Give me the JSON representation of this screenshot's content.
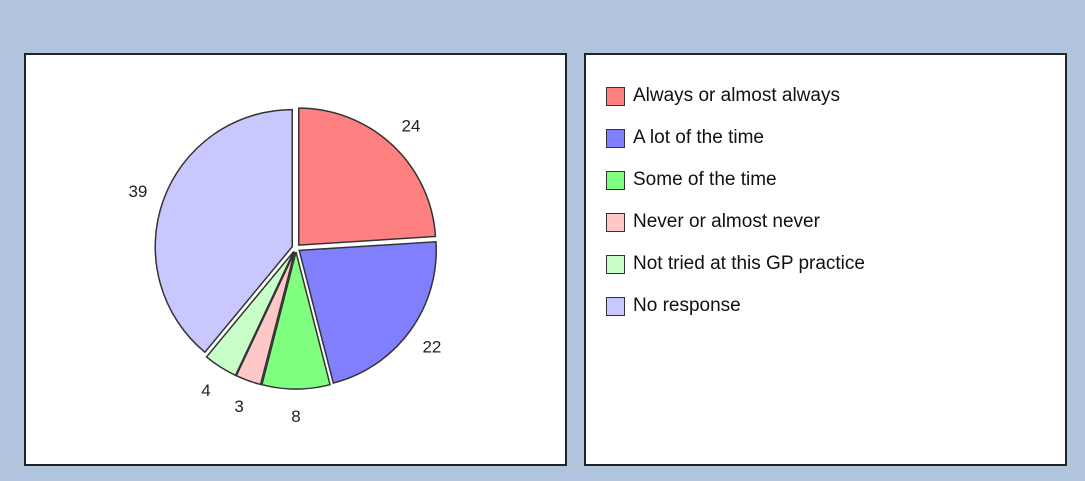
{
  "chart_data": {
    "type": "pie",
    "title": "",
    "categories": [
      "Always or almost always",
      "A lot of the time",
      "Some of the time",
      "Never or almost never",
      "Not tried at this GP practice",
      "No response"
    ],
    "values": [
      24,
      22,
      8,
      3,
      4,
      39
    ],
    "colors": [
      "#ff8080",
      "#8080ff",
      "#80ff80",
      "#ffc8c8",
      "#c8ffc8",
      "#c8c8ff"
    ],
    "labels": [
      "24",
      "22",
      "8",
      "3",
      "4",
      "39"
    ],
    "start_angle_deg": 0,
    "direction": "clockwise",
    "exploded": true,
    "legend_position": "right"
  },
  "legend": {
    "items": [
      {
        "label": "Always or almost always",
        "color": "#ff8080"
      },
      {
        "label": "A lot of the time",
        "color": "#8080ff"
      },
      {
        "label": "Some of the time",
        "color": "#80ff80"
      },
      {
        "label": "Never or almost never",
        "color": "#ffc8c8"
      },
      {
        "label": "Not tried at this GP practice",
        "color": "#c8ffc8"
      },
      {
        "label": "No response",
        "color": "#c8c8ff"
      }
    ]
  }
}
